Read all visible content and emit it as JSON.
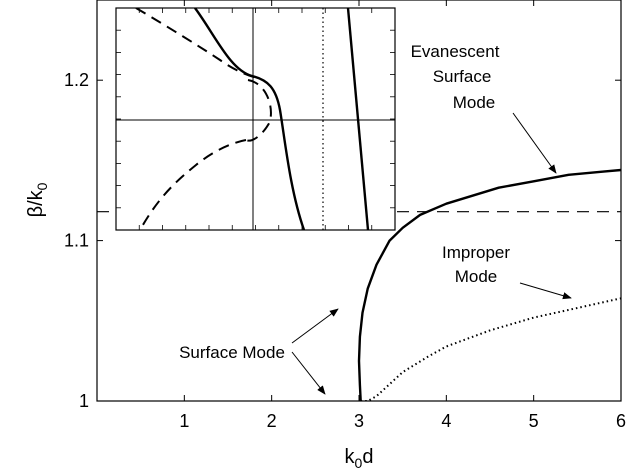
{
  "chart_data": {
    "type": "line",
    "xlabel": "k0d",
    "ylabel": "β/k0",
    "xlim": [
      0,
      6
    ],
    "ylim": [
      1.0,
      1.25
    ],
    "xticks": [
      1,
      2,
      3,
      4,
      5,
      6
    ],
    "yticks": [
      1,
      1.1,
      1.2
    ],
    "x_tick_labels": [
      "1",
      "2",
      "3",
      "4",
      "5",
      "6"
    ],
    "y_tick_labels": [
      "1",
      "1.1",
      "1.2"
    ],
    "grid": false,
    "series": [
      {
        "style": "solid",
        "x": [
          3.02,
          3.01,
          3.0,
          3.01,
          3.04,
          3.1,
          3.2,
          3.35,
          3.5,
          3.7,
          4.0,
          4.3,
          4.6,
          5.0,
          5.4,
          5.8,
          6.0
        ],
        "y": [
          1.0,
          1.01,
          1.025,
          1.04,
          1.055,
          1.07,
          1.085,
          1.1,
          1.108,
          1.116,
          1.123,
          1.128,
          1.133,
          1.137,
          1.141,
          1.143,
          1.144
        ]
      },
      {
        "style": "dotted",
        "x": [
          3.02,
          3.1,
          3.2,
          3.3,
          3.5,
          3.8,
          4.0,
          4.5,
          5.0,
          5.5,
          6.0
        ],
        "y": [
          1.0,
          1.0,
          1.003,
          1.008,
          1.018,
          1.028,
          1.034,
          1.044,
          1.052,
          1.058,
          1.064
        ]
      },
      {
        "style": "dashed",
        "x": [
          0,
          6
        ],
        "y": [
          1.118,
          1.118
        ]
      }
    ],
    "annotations": [
      {
        "lines": [
          "Evanescent",
          "Surface",
          "Mode"
        ]
      },
      {
        "lines": [
          "Improper",
          "Mode"
        ]
      },
      {
        "lines": [
          "Surface Mode"
        ]
      }
    ],
    "inset": {
      "crosshair": "cross lines in the inset"
    }
  }
}
